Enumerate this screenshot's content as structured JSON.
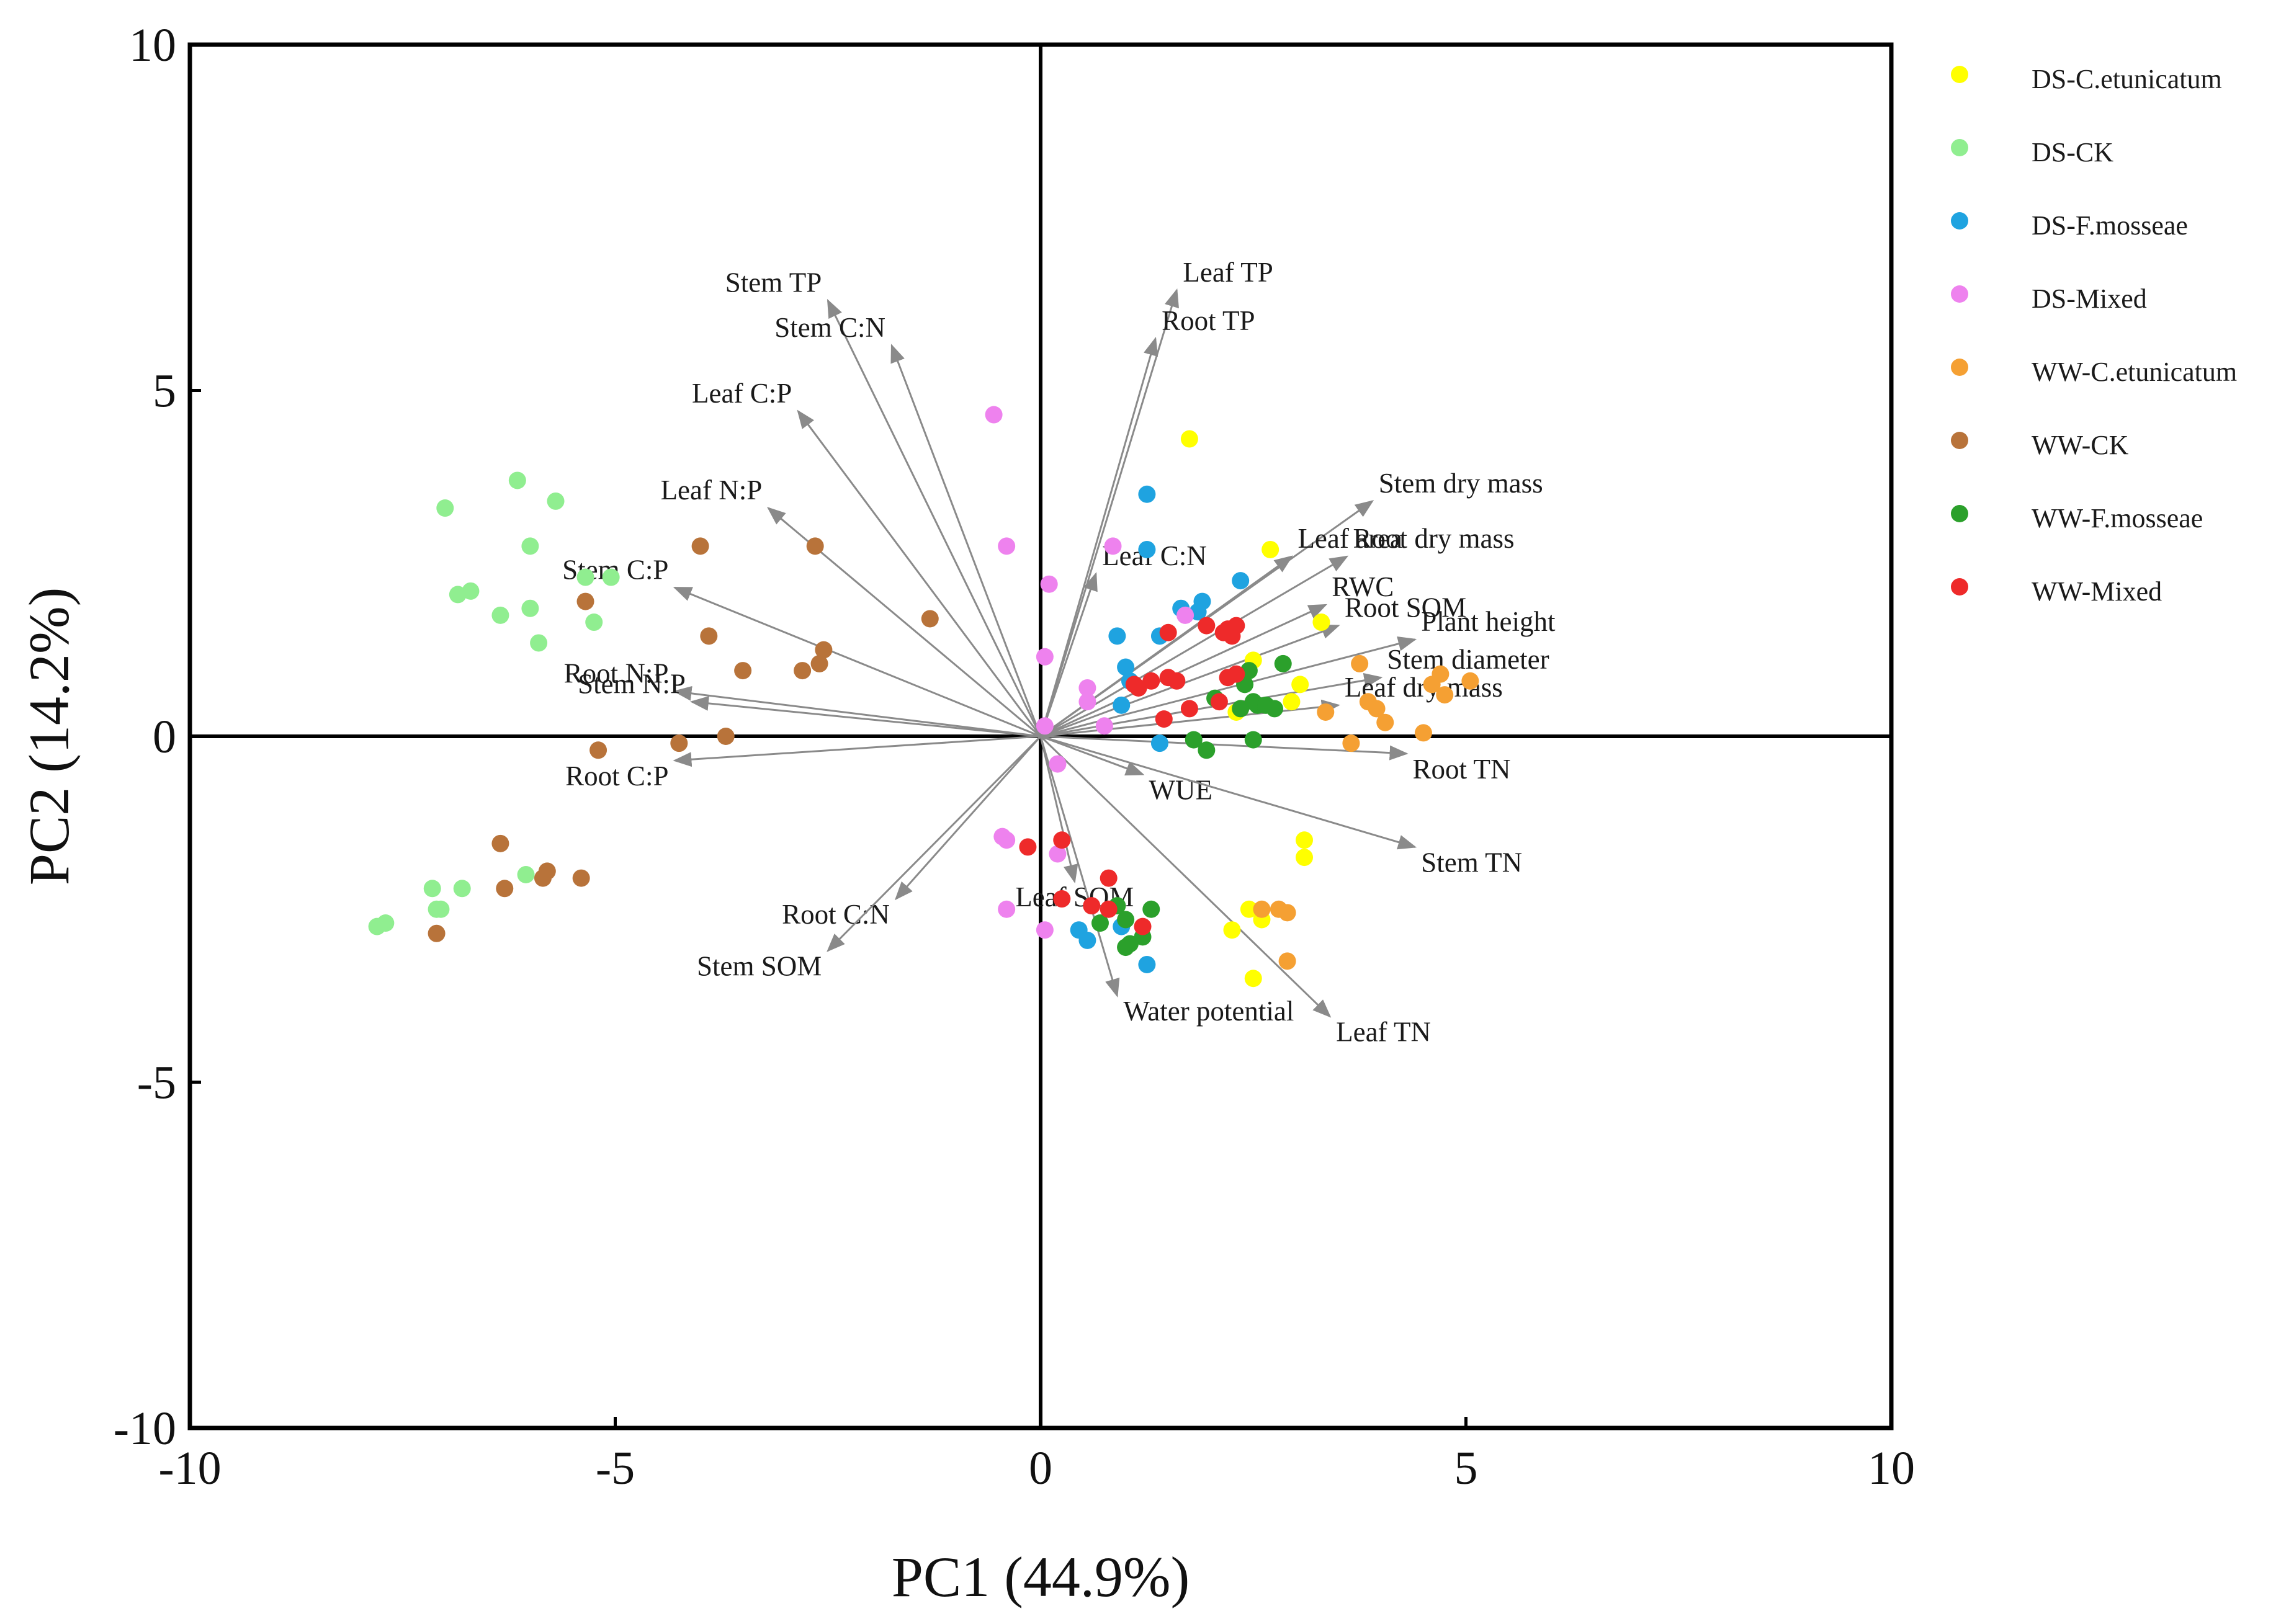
{
  "chart_data": {
    "type": "scatter",
    "subtype": "pca-biplot",
    "xlabel": "PC1 (44.9%)",
    "ylabel": "PC2 (14.2%)",
    "xlim": [
      -10,
      10
    ],
    "ylim": [
      -10,
      10
    ],
    "xticks": [
      -10,
      -5,
      0,
      5,
      10
    ],
    "yticks": [
      -10,
      -5,
      0,
      5,
      10
    ],
    "xtick_labels": [
      "-10",
      "-5",
      "0",
      "5",
      "10"
    ],
    "ytick_labels": [
      "-10",
      "-5",
      "0",
      "5",
      "10"
    ],
    "legend_position": "right",
    "series": [
      {
        "name": "DS-C.etunicatum",
        "color": "#ffff00",
        "points": [
          [
            1.75,
            4.3
          ],
          [
            2.7,
            2.7
          ],
          [
            3.3,
            1.65
          ],
          [
            2.5,
            1.1
          ],
          [
            3.05,
            0.75
          ],
          [
            2.3,
            0.35
          ],
          [
            2.95,
            0.5
          ],
          [
            3.1,
            -1.5
          ],
          [
            3.1,
            -1.75
          ],
          [
            2.25,
            -2.8
          ],
          [
            2.45,
            -2.5
          ],
          [
            2.6,
            -2.65
          ],
          [
            2.5,
            -3.5
          ]
        ]
      },
      {
        "name": "DS-CK",
        "color": "#90ee90",
        "points": [
          [
            -7.0,
            3.3
          ],
          [
            -6.15,
            3.7
          ],
          [
            -5.7,
            3.4
          ],
          [
            -6.0,
            2.75
          ],
          [
            -6.85,
            2.05
          ],
          [
            -6.7,
            2.1
          ],
          [
            -5.35,
            2.3
          ],
          [
            -5.05,
            2.3
          ],
          [
            -6.35,
            1.75
          ],
          [
            -6.0,
            1.85
          ],
          [
            -5.25,
            1.65
          ],
          [
            -5.9,
            1.35
          ],
          [
            -7.15,
            -2.2
          ],
          [
            -6.8,
            -2.2
          ],
          [
            -6.05,
            -2.0
          ],
          [
            -7.1,
            -2.5
          ],
          [
            -7.05,
            -2.5
          ],
          [
            -7.8,
            -2.75
          ],
          [
            -7.7,
            -2.7
          ]
        ]
      },
      {
        "name": "DS-F.mosseae",
        "color": "#1fa3e0",
        "points": [
          [
            1.25,
            3.5
          ],
          [
            1.25,
            2.7
          ],
          [
            2.35,
            2.25
          ],
          [
            1.9,
            1.95
          ],
          [
            1.65,
            1.85
          ],
          [
            1.85,
            1.8
          ],
          [
            1.4,
            1.45
          ],
          [
            0.9,
            1.45
          ],
          [
            1.0,
            1.0
          ],
          [
            1.05,
            0.8
          ],
          [
            0.95,
            0.45
          ],
          [
            1.4,
            -0.1
          ],
          [
            0.45,
            -2.8
          ],
          [
            0.55,
            -2.95
          ],
          [
            0.95,
            -2.75
          ],
          [
            1.25,
            -3.3
          ]
        ]
      },
      {
        "name": "DS-Mixed",
        "color": "#ee82ee",
        "points": [
          [
            -0.55,
            4.65
          ],
          [
            -0.4,
            2.75
          ],
          [
            0.85,
            2.75
          ],
          [
            0.1,
            2.2
          ],
          [
            1.7,
            1.75
          ],
          [
            0.05,
            1.15
          ],
          [
            0.55,
            0.7
          ],
          [
            0.55,
            0.5
          ],
          [
            0.75,
            0.15
          ],
          [
            0.05,
            0.15
          ],
          [
            0.2,
            -0.4
          ],
          [
            -0.45,
            -1.45
          ],
          [
            -0.4,
            -1.5
          ],
          [
            0.2,
            -1.7
          ],
          [
            -0.4,
            -2.5
          ],
          [
            0.05,
            -2.8
          ]
        ]
      },
      {
        "name": "WW-C.etunicatum",
        "color": "#f5a033",
        "points": [
          [
            3.75,
            1.05
          ],
          [
            4.7,
            0.9
          ],
          [
            5.05,
            0.8
          ],
          [
            4.6,
            0.75
          ],
          [
            4.75,
            0.6
          ],
          [
            3.85,
            0.5
          ],
          [
            3.95,
            0.4
          ],
          [
            3.35,
            0.35
          ],
          [
            4.05,
            0.2
          ],
          [
            4.5,
            0.05
          ],
          [
            3.65,
            -0.1
          ],
          [
            2.8,
            -2.5
          ],
          [
            2.9,
            -2.55
          ],
          [
            2.6,
            -2.5
          ],
          [
            2.9,
            -3.25
          ]
        ]
      },
      {
        "name": "WW-CK",
        "color": "#b8733a",
        "points": [
          [
            -2.65,
            2.75
          ],
          [
            -4.0,
            2.75
          ],
          [
            -5.35,
            1.95
          ],
          [
            -1.3,
            1.7
          ],
          [
            -3.9,
            1.45
          ],
          [
            -2.55,
            1.25
          ],
          [
            -2.6,
            1.05
          ],
          [
            -3.5,
            0.95
          ],
          [
            -2.8,
            0.95
          ],
          [
            -3.7,
            0.0
          ],
          [
            -4.25,
            -0.1
          ],
          [
            -5.2,
            -0.2
          ],
          [
            -6.35,
            -1.55
          ],
          [
            -5.8,
            -1.95
          ],
          [
            -5.85,
            -2.05
          ],
          [
            -5.4,
            -2.05
          ],
          [
            -6.3,
            -2.2
          ],
          [
            -7.1,
            -2.85
          ]
        ]
      },
      {
        "name": "WW-F.mosseae",
        "color": "#2ba02b",
        "points": [
          [
            2.85,
            1.05
          ],
          [
            2.45,
            0.95
          ],
          [
            2.4,
            0.75
          ],
          [
            2.05,
            0.55
          ],
          [
            2.55,
            0.45
          ],
          [
            2.5,
            0.5
          ],
          [
            2.65,
            0.45
          ],
          [
            2.75,
            0.4
          ],
          [
            2.35,
            0.4
          ],
          [
            1.8,
            -0.05
          ],
          [
            2.5,
            -0.05
          ],
          [
            1.95,
            -0.2
          ],
          [
            0.9,
            -2.45
          ],
          [
            1.3,
            -2.5
          ],
          [
            1.0,
            -2.65
          ],
          [
            0.7,
            -2.7
          ],
          [
            1.2,
            -2.9
          ],
          [
            1.05,
            -3.0
          ],
          [
            1.0,
            -3.05
          ]
        ]
      },
      {
        "name": "WW-Mixed",
        "color": "#ee2a2a",
        "points": [
          [
            2.2,
            1.55
          ],
          [
            2.3,
            1.6
          ],
          [
            2.15,
            1.5
          ],
          [
            2.25,
            1.45
          ],
          [
            1.95,
            1.6
          ],
          [
            1.5,
            1.5
          ],
          [
            2.3,
            0.9
          ],
          [
            2.2,
            0.85
          ],
          [
            1.5,
            0.85
          ],
          [
            1.6,
            0.8
          ],
          [
            1.3,
            0.8
          ],
          [
            1.1,
            0.75
          ],
          [
            1.15,
            0.7
          ],
          [
            2.1,
            0.5
          ],
          [
            1.75,
            0.4
          ],
          [
            1.45,
            0.25
          ],
          [
            -0.15,
            -1.6
          ],
          [
            0.25,
            -1.5
          ],
          [
            0.8,
            -2.05
          ],
          [
            0.25,
            -2.35
          ],
          [
            0.6,
            -2.45
          ],
          [
            0.8,
            -2.5
          ],
          [
            1.2,
            -2.75
          ]
        ]
      }
    ],
    "loadings": [
      {
        "label": "Stem TP",
        "x": -2.5,
        "y": 6.3
      },
      {
        "label": "Stem C:N",
        "x": -1.75,
        "y": 5.65
      },
      {
        "label": "Leaf C:P",
        "x": -2.85,
        "y": 4.7
      },
      {
        "label": "Leaf N:P",
        "x": -3.2,
        "y": 3.3
      },
      {
        "label": "Stem C:P",
        "x": -4.3,
        "y": 2.15
      },
      {
        "label": "Root N:P",
        "x": -4.3,
        "y": 0.65
      },
      {
        "label": "Stem N:P",
        "x": -4.1,
        "y": 0.5
      },
      {
        "label": "Root C:P",
        "x": -4.3,
        "y": -0.35
      },
      {
        "label": "Root C:N",
        "x": -1.7,
        "y": -2.35
      },
      {
        "label": "Stem SOM",
        "x": -2.5,
        "y": -3.1
      },
      {
        "label": "Leaf TP",
        "x": 1.6,
        "y": 6.45
      },
      {
        "label": "Root TP",
        "x": 1.35,
        "y": 5.75
      },
      {
        "label": "Leaf C:N",
        "x": 0.65,
        "y": 2.35
      },
      {
        "label": "Stem dry mass",
        "x": 3.9,
        "y": 3.4
      },
      {
        "label": "Root dry mass",
        "x": 3.6,
        "y": 2.6
      },
      {
        "label": "Leaf area",
        "x": 2.95,
        "y": 2.6
      },
      {
        "label": "RWC",
        "x": 3.35,
        "y": 1.9
      },
      {
        "label": "Root SOM",
        "x": 3.5,
        "y": 1.6
      },
      {
        "label": "Plant height",
        "x": 4.4,
        "y": 1.4
      },
      {
        "label": "Stem diameter",
        "x": 4.0,
        "y": 0.85
      },
      {
        "label": "Leaf dry mass",
        "x": 3.5,
        "y": 0.45
      },
      {
        "label": "Root TN",
        "x": 4.3,
        "y": -0.25
      },
      {
        "label": "WUE",
        "x": 1.2,
        "y": -0.55
      },
      {
        "label": "Stem TN",
        "x": 4.4,
        "y": -1.6
      },
      {
        "label": "Leaf SOM",
        "x": 0.4,
        "y": -2.1
      },
      {
        "label": "Water potential",
        "x": 0.9,
        "y": -3.75
      },
      {
        "label": "Leaf TN",
        "x": 3.4,
        "y": -4.05
      }
    ]
  }
}
